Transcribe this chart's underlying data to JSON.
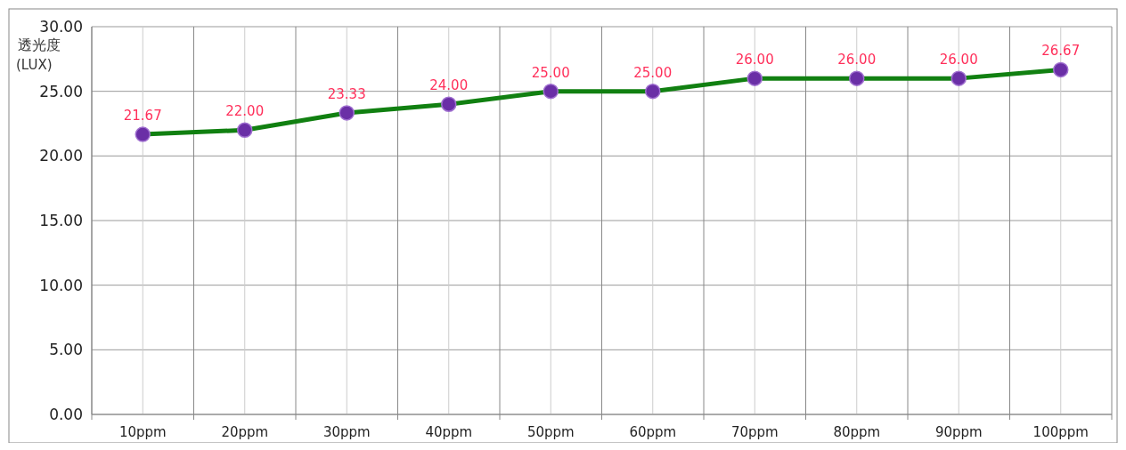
{
  "chart_data": {
    "type": "line",
    "ylabel": "透光度\n(LUX)",
    "categories": [
      "10ppm",
      "20ppm",
      "30ppm",
      "40ppm",
      "50ppm",
      "60ppm",
      "70ppm",
      "80ppm",
      "90ppm",
      "100ppm"
    ],
    "series": [
      {
        "color": "#118011",
        "values": [
          21.67,
          22.0,
          23.33,
          24.0,
          25.0,
          25.0,
          26.0,
          26.0,
          26.0,
          26.67
        ],
        "value_labels": [
          "21.67",
          "22.00",
          "23.33",
          "24.00",
          "25.00",
          "25.00",
          "26.00",
          "26.00",
          "26.00",
          "26.67"
        ]
      }
    ],
    "ylim": [
      0,
      30
    ],
    "yticks": [
      {
        "value": 0,
        "label": "0.00"
      },
      {
        "value": 5,
        "label": "5.00"
      },
      {
        "value": 10,
        "label": "10.00"
      },
      {
        "value": 15,
        "label": "15.00"
      },
      {
        "value": 20,
        "label": "20.00"
      },
      {
        "value": 25,
        "label": "25.00"
      },
      {
        "value": 30,
        "label": "30.00"
      }
    ],
    "grid": true,
    "marker": "circle",
    "line_style": "solid"
  }
}
